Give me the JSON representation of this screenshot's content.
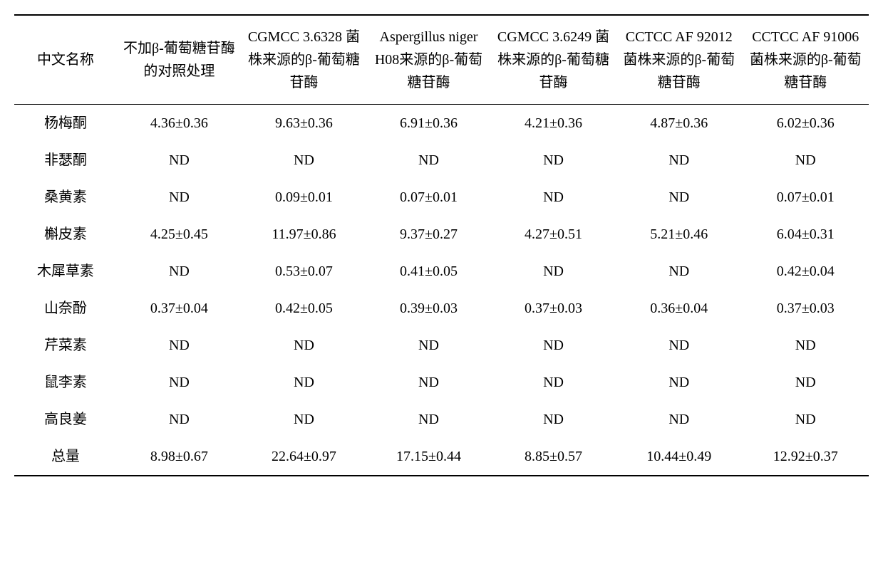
{
  "table": {
    "columns": [
      "中文名称",
      "不加β-葡萄糖苷酶的对照处理",
      "CGMCC 3.6328 菌株来源的β-葡萄糖苷酶",
      "Aspergillus niger H08来源的β-葡萄糖苷酶",
      "CGMCC 3.6249 菌株来源的β-葡萄糖苷酶",
      "CCTCC AF 92012 菌株来源的β-葡萄糖苷酶",
      "CCTCC AF 91006 菌株来源的β-葡萄糖苷酶"
    ],
    "rows": [
      [
        "杨梅酮",
        "4.36±0.36",
        "9.63±0.36",
        "6.91±0.36",
        "4.21±0.36",
        "4.87±0.36",
        "6.02±0.36"
      ],
      [
        "非瑟酮",
        "ND",
        "ND",
        "ND",
        "ND",
        "ND",
        "ND"
      ],
      [
        "桑黄素",
        "ND",
        "0.09±0.01",
        "0.07±0.01",
        "ND",
        "ND",
        "0.07±0.01"
      ],
      [
        "槲皮素",
        "4.25±0.45",
        "11.97±0.86",
        "9.37±0.27",
        "4.27±0.51",
        "5.21±0.46",
        "6.04±0.31"
      ],
      [
        "木犀草素",
        "ND",
        "0.53±0.07",
        "0.41±0.05",
        "ND",
        "ND",
        "0.42±0.04"
      ],
      [
        "山奈酚",
        "0.37±0.04",
        "0.42±0.05",
        "0.39±0.03",
        "0.37±0.03",
        "0.36±0.04",
        "0.37±0.03"
      ],
      [
        "芹菜素",
        "ND",
        "ND",
        "ND",
        "ND",
        "ND",
        "ND"
      ],
      [
        "鼠李素",
        "ND",
        "ND",
        "ND",
        "ND",
        "ND",
        "ND"
      ],
      [
        "高良姜",
        "ND",
        "ND",
        "ND",
        "ND",
        "ND",
        "ND"
      ],
      [
        "总量",
        "8.98±0.67",
        "22.64±0.97",
        "17.15±0.44",
        "8.85±0.57",
        "10.44±0.49",
        "12.92±0.37"
      ]
    ],
    "column_widths": [
      "12%",
      "14.6%",
      "14.6%",
      "14.6%",
      "14.6%",
      "14.8%",
      "14.8%"
    ],
    "header_fontsize": 20,
    "body_fontsize": 20,
    "border_color": "#000000",
    "background_color": "#ffffff",
    "text_color": "#000000"
  }
}
